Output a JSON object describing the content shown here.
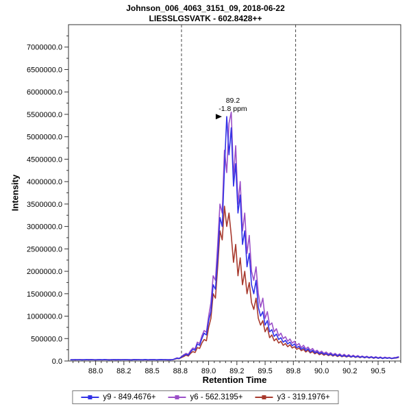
{
  "figure": {
    "title_line1": "Johnson_006_4063_3151_09, 2018-06-22",
    "title_line2": "LIESSLGSVATK - 602.8428++",
    "y_axis_label": "Intensity",
    "x_axis_label": "Retention Time"
  },
  "chart_data": {
    "type": "line",
    "title_lines": [
      "Johnson_006_4063_3151_09, 2018-06-22",
      "LIESSLGSVATK - 602.8428++"
    ],
    "xlabel": "Retention Time",
    "ylabel": "Intensity",
    "xlim": [
      87.76,
      90.7
    ],
    "ylim": [
      0,
      7500000
    ],
    "grid": false,
    "legend_position": "bottom-center",
    "x_ticks": {
      "values": [
        88.0,
        88.25,
        88.5,
        88.75,
        89.0,
        89.25,
        89.5,
        89.75,
        90.0,
        90.25,
        90.5
      ],
      "labels": [
        "88.0",
        "88.2",
        "88.5",
        "88.8",
        "89.0",
        "89.2",
        "89.5",
        "89.8",
        "90.0",
        "90.2",
        "90.5"
      ]
    },
    "y_ticks": {
      "values": [
        0,
        500000,
        1000000,
        1500000,
        2000000,
        2500000,
        3000000,
        3500000,
        4000000,
        4500000,
        5000000,
        5500000,
        6000000,
        6500000,
        7000000
      ],
      "labels": [
        "0.0",
        "500000.0",
        "1000000.0",
        "1500000.0",
        "2000000.0",
        "2500000.0",
        "3000000.0",
        "3500000.0",
        "4000000.0",
        "4500000.0",
        "5000000.0",
        "5500000.0",
        "6000000.0",
        "6500000.0",
        "7000000.0"
      ]
    },
    "peak_boundaries": [
      88.76,
      89.77
    ],
    "annotation": {
      "x": 89.16,
      "y": 5450000,
      "line1": "89.2",
      "line2": "-1.8 ppm",
      "color": "#9b4fc8",
      "arrow_color": "#000000"
    },
    "x_start": 87.78,
    "x_step": 0.02,
    "y_value_scale": 1000,
    "series": [
      {
        "name": "y9",
        "label": "y9 - 849.4676+",
        "color": "#3232e6",
        "values": [
          28,
          26,
          30,
          27,
          31,
          25,
          29,
          32,
          27,
          30,
          28,
          26,
          31,
          29,
          27,
          33,
          28,
          25,
          30,
          27,
          32,
          29,
          26,
          31,
          28,
          30,
          27,
          25,
          32,
          28,
          31,
          26,
          29,
          33,
          27,
          30,
          28,
          31,
          26,
          29,
          32,
          27,
          30,
          28,
          25,
          31,
          45,
          60,
          55,
          90,
          120,
          150,
          130,
          200,
          260,
          240,
          380,
          350,
          500,
          620,
          580,
          900,
          1100,
          1700,
          1600,
          2300,
          3200,
          3000,
          4300,
          5450,
          4600,
          5200,
          3900,
          4400,
          3300,
          3700,
          2600,
          2900,
          2100,
          2400,
          1700,
          1500,
          1800,
          1200,
          1000,
          1100,
          800,
          900,
          650,
          700,
          550,
          600,
          480,
          520,
          420,
          460,
          380,
          420,
          340,
          380,
          300,
          330,
          260,
          300,
          230,
          270,
          200,
          240,
          180,
          210,
          160,
          190,
          150,
          170,
          130,
          160,
          120,
          150,
          110,
          140,
          100,
          130,
          95,
          120,
          90,
          110,
          85,
          105,
          80,
          100,
          75,
          95,
          70,
          90,
          65,
          85,
          60,
          80,
          55,
          75,
          60,
          70,
          55,
          65,
          70,
          85
        ]
      },
      {
        "name": "y6",
        "label": "y6 - 562.3195+",
        "color": "#9b4fc8",
        "values": [
          30,
          27,
          32,
          26,
          29,
          31,
          27,
          30,
          25,
          33,
          28,
          30,
          26,
          32,
          27,
          29,
          31,
          26,
          30,
          28,
          25,
          32,
          29,
          27,
          31,
          28,
          30,
          26,
          29,
          33,
          27,
          30,
          25,
          31,
          28,
          26,
          32,
          29,
          27,
          30,
          28,
          31,
          26,
          29,
          32,
          27,
          50,
          70,
          60,
          100,
          140,
          170,
          150,
          230,
          290,
          270,
          420,
          390,
          560,
          680,
          640,
          1000,
          1300,
          1900,
          1800,
          2600,
          3500,
          3300,
          4700,
          4200,
          5300,
          5550,
          4100,
          4800,
          3500,
          4000,
          2900,
          3300,
          2400,
          2800,
          2000,
          1800,
          2100,
          1500,
          1200,
          1400,
          950,
          1100,
          800,
          850,
          650,
          720,
          560,
          620,
          500,
          540,
          440,
          490,
          400,
          440,
          350,
          390,
          300,
          350,
          270,
          310,
          240,
          280,
          210,
          240,
          185,
          220,
          170,
          200,
          155,
          185,
          140,
          170,
          130,
          160,
          115,
          150,
          110,
          140,
          100,
          130,
          95,
          120,
          90,
          110,
          85,
          105,
          80,
          100,
          75,
          95,
          70,
          90,
          65,
          85,
          70,
          80,
          60,
          75,
          80,
          95
        ]
      },
      {
        "name": "y3",
        "label": "y3 - 319.1976+",
        "color": "#a83a2e",
        "values": [
          26,
          29,
          25,
          30,
          27,
          31,
          26,
          28,
          32,
          27,
          29,
          25,
          30,
          28,
          26,
          31,
          27,
          29,
          25,
          32,
          28,
          26,
          30,
          27,
          31,
          28,
          25,
          29,
          32,
          26,
          30,
          27,
          28,
          31,
          25,
          29,
          27,
          30,
          26,
          28,
          31,
          27,
          29,
          25,
          30,
          28,
          40,
          55,
          50,
          80,
          100,
          130,
          110,
          170,
          210,
          190,
          300,
          280,
          400,
          480,
          450,
          750,
          950,
          1500,
          1400,
          2100,
          2900,
          2700,
          3450,
          3000,
          3300,
          2800,
          2200,
          2600,
          1900,
          2300,
          1700,
          2000,
          1500,
          1750,
          1300,
          1150,
          1400,
          950,
          800,
          900,
          650,
          750,
          520,
          580,
          450,
          500,
          400,
          440,
          350,
          390,
          320,
          360,
          290,
          320,
          260,
          290,
          230,
          260,
          200,
          240,
          180,
          210,
          160,
          190,
          140,
          170,
          130,
          155,
          120,
          145,
          110,
          135,
          100,
          125,
          95,
          115,
          90,
          110,
          85,
          105,
          80,
          100,
          75,
          95,
          70,
          90,
          65,
          85,
          60,
          80,
          58,
          75,
          55,
          70,
          60,
          68,
          52,
          62,
          66,
          78
        ]
      }
    ]
  }
}
